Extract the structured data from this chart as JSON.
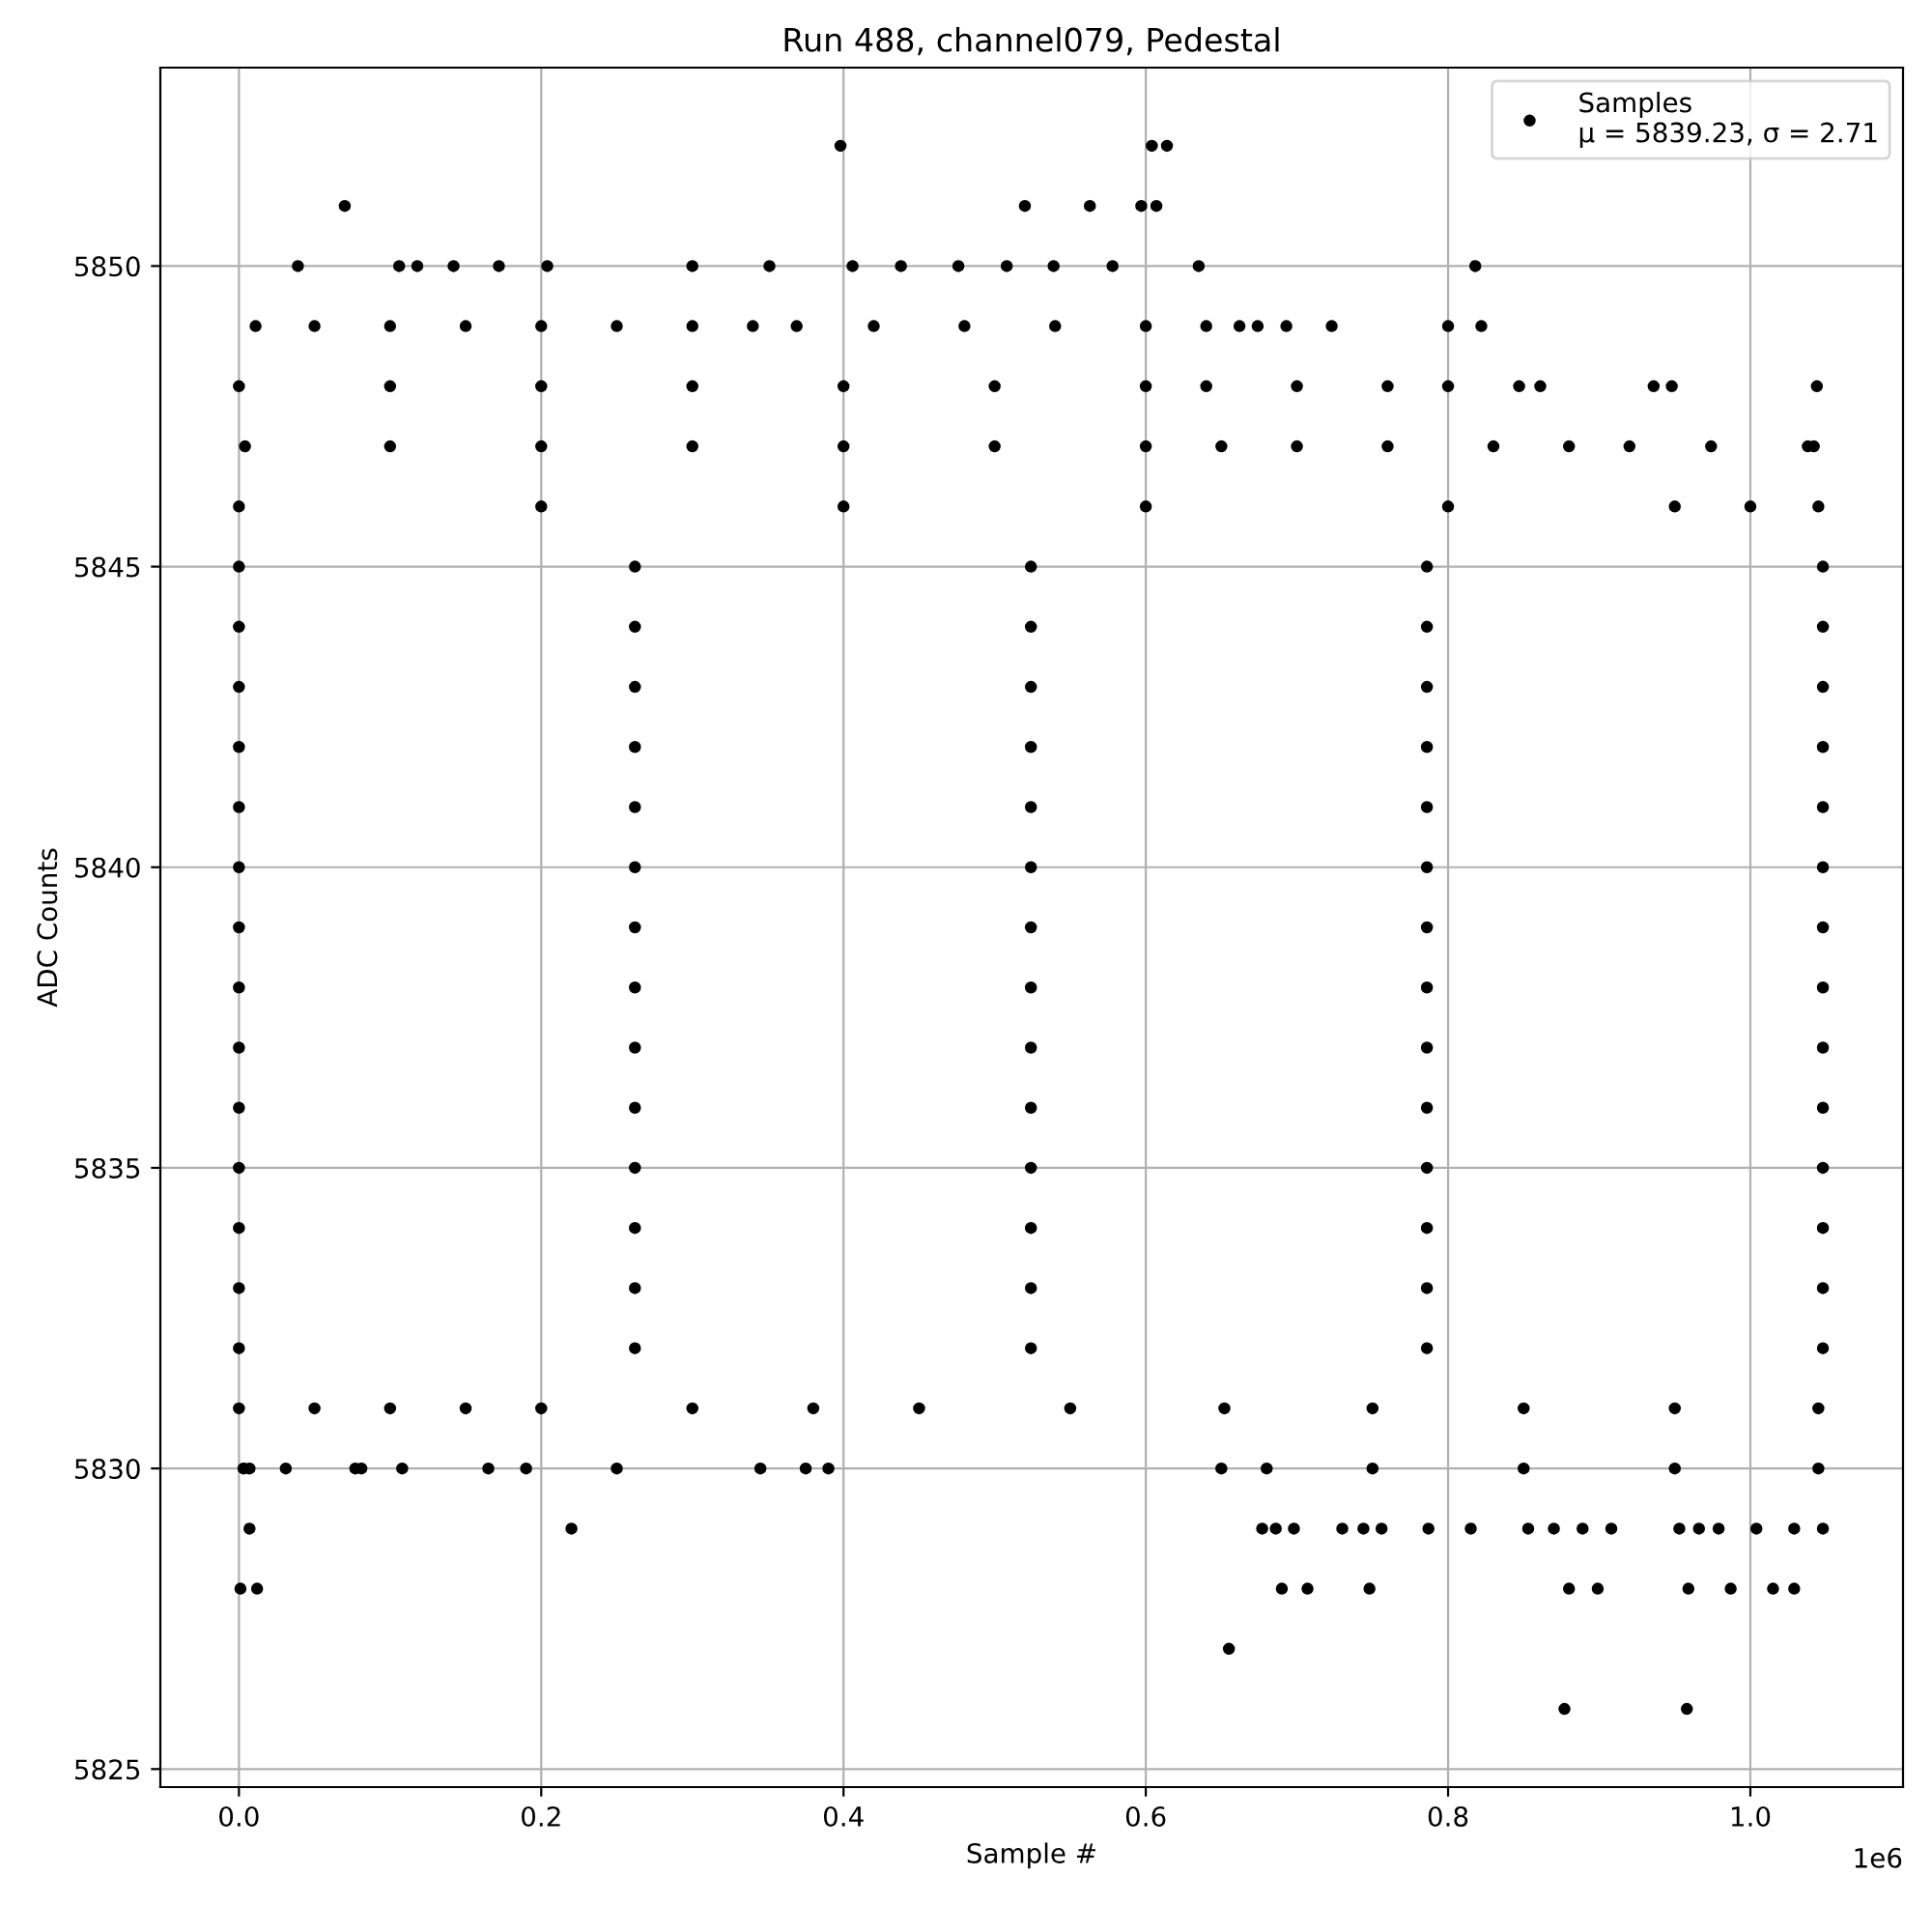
{
  "chart_data": {
    "type": "scatter",
    "title": "Run 488, channel079, Pedestal",
    "xlabel": "Sample #",
    "ylabel": "ADC Counts",
    "xlim": [
      -0.052,
      1.101
    ],
    "ylim": [
      5824.7,
      5853.3
    ],
    "xticks": [
      {
        "value": 0,
        "label": "0.0"
      },
      0.2,
      0.4,
      0.6,
      0.8,
      {
        "value": 1,
        "label": "1.0"
      }
    ],
    "yticks": [
      5825,
      5830,
      5835,
      5840,
      5845,
      5850
    ],
    "annotations": [
      "1e6"
    ],
    "grid": true,
    "legend": "top right",
    "marker": "circle",
    "series": [
      {
        "name": "Samples\nμ = 5839.23, σ = 2.71",
        "color": "#000000",
        "x": [
          0,
          0.262,
          0.524,
          0.786,
          1.048
        ],
        "values": [
          5840,
          5840,
          5840,
          5840,
          5840
        ]
      },
      {
        "color": "#000000",
        "x": [
          0.398,
          0.604,
          0.614
        ],
        "values": [
          5852,
          5852,
          5852
        ]
      },
      {
        "color": "#000000",
        "x": [
          0.07,
          0.52,
          0.563,
          0.597,
          0.607
        ],
        "values": [
          5851,
          5851,
          5851,
          5851,
          5851
        ]
      },
      {
        "color": "#000000",
        "x": [
          0.039,
          0.106,
          0.118,
          0.142,
          0.172,
          0.204,
          0.3,
          0.351,
          0.406,
          0.438,
          0.476,
          0.508,
          0.539,
          0.578,
          0.635,
          0.818
        ],
        "values": [
          5850,
          5850,
          5850,
          5850,
          5850,
          5850,
          5850,
          5850,
          5850,
          5850,
          5850,
          5850,
          5850,
          5850,
          5850,
          5850
        ]
      },
      {
        "color": "#000000",
        "x": [
          0.011,
          0.05,
          0.1,
          0.15,
          0.2,
          0.25,
          0.3,
          0.34,
          0.369,
          0.42,
          0.48,
          0.54,
          0.6,
          0.64,
          0.662,
          0.674,
          0.693,
          0.723,
          0.8,
          0.822
        ],
        "values": [
          5849,
          5849,
          5849,
          5849,
          5849,
          5849,
          5849,
          5849,
          5849,
          5849,
          5849,
          5849,
          5849,
          5849,
          5849,
          5849,
          5849,
          5849,
          5849,
          5849
        ]
      },
      {
        "color": "#000000",
        "x": [
          0,
          0.1,
          0.2,
          0.3,
          0.4,
          0.5,
          0.6,
          0.64,
          0.7,
          0.76,
          0.8,
          0.847,
          0.861,
          0.936,
          0.948,
          1.044
        ],
        "values": [
          5848,
          5848,
          5848,
          5848,
          5848,
          5848,
          5848,
          5848,
          5848,
          5848,
          5848,
          5848,
          5848,
          5848,
          5848,
          5848
        ]
      },
      {
        "color": "#000000",
        "x": [
          0.004,
          0.1,
          0.2,
          0.3,
          0.4,
          0.5,
          0.6,
          0.65,
          0.7,
          0.76,
          0.83,
          0.88,
          0.92,
          0.974,
          1.038,
          1.042
        ],
        "values": [
          5847,
          5847,
          5847,
          5847,
          5847,
          5847,
          5847,
          5847,
          5847,
          5847,
          5847,
          5847,
          5847,
          5847,
          5847,
          5847
        ]
      },
      {
        "color": "#000000",
        "x": [
          0,
          0.2,
          0.4,
          0.6,
          0.8,
          0.95,
          1.0,
          1.045
        ],
        "values": [
          5846,
          5846,
          5846,
          5846,
          5846,
          5846,
          5846,
          5846
        ]
      },
      {
        "color": "#000000",
        "x": [
          0,
          0.262,
          0.524,
          0.786,
          1.048
        ],
        "values": [
          5845,
          5845,
          5845,
          5845,
          5845
        ]
      },
      {
        "color": "#000000",
        "x": [
          0,
          0.262,
          0.524,
          0.786,
          1.048
        ],
        "values": [
          5844,
          5844,
          5844,
          5844,
          5844
        ]
      },
      {
        "color": "#000000",
        "x": [
          0,
          0.262,
          0.524,
          0.786,
          1.048
        ],
        "values": [
          5843,
          5843,
          5843,
          5843,
          5843
        ]
      },
      {
        "color": "#000000",
        "x": [
          0,
          0.262,
          0.524,
          0.786,
          1.048
        ],
        "values": [
          5842,
          5842,
          5842,
          5842,
          5842
        ]
      },
      {
        "color": "#000000",
        "x": [
          0,
          0.262,
          0.524,
          0.786,
          1.048
        ],
        "values": [
          5841,
          5841,
          5841,
          5841,
          5841
        ]
      },
      {
        "color": "#000000",
        "x": [
          0,
          0.262,
          0.524,
          0.786,
          1.048
        ],
        "values": [
          5839,
          5839,
          5839,
          5839,
          5839
        ]
      },
      {
        "color": "#000000",
        "x": [
          0,
          0.262,
          0.524,
          0.786,
          1.048
        ],
        "values": [
          5838,
          5838,
          5838,
          5838,
          5838
        ]
      },
      {
        "color": "#000000",
        "x": [
          0,
          0.262,
          0.524,
          0.786,
          1.048
        ],
        "values": [
          5837,
          5837,
          5837,
          5837,
          5837
        ]
      },
      {
        "color": "#000000",
        "x": [
          0,
          0.262,
          0.524,
          0.786,
          1.048
        ],
        "values": [
          5836,
          5836,
          5836,
          5836,
          5836
        ]
      },
      {
        "color": "#000000",
        "x": [
          0,
          0.262,
          0.524,
          0.786,
          1.048
        ],
        "values": [
          5835,
          5835,
          5835,
          5835,
          5835
        ]
      },
      {
        "color": "#000000",
        "x": [
          0,
          0.262,
          0.524,
          0.786,
          1.048
        ],
        "values": [
          5834,
          5834,
          5834,
          5834,
          5834
        ]
      },
      {
        "color": "#000000",
        "x": [
          0,
          0.262,
          0.524,
          0.786,
          1.048
        ],
        "values": [
          5833,
          5833,
          5833,
          5833,
          5833
        ]
      },
      {
        "color": "#000000",
        "x": [
          0,
          0.262,
          0.524,
          0.786,
          1.048
        ],
        "values": [
          5832,
          5832,
          5832,
          5832,
          5832
        ]
      },
      {
        "color": "#000000",
        "x": [
          0,
          0.05,
          0.1,
          0.15,
          0.2,
          0.3,
          0.38,
          0.45,
          0.55,
          0.652,
          0.75,
          0.85,
          0.95,
          1.045
        ],
        "values": [
          5831,
          5831,
          5831,
          5831,
          5831,
          5831,
          5831,
          5831,
          5831,
          5831,
          5831,
          5831,
          5831,
          5831
        ]
      },
      {
        "color": "#000000",
        "x": [
          0.003,
          0.007,
          0.031,
          0.077,
          0.081,
          0.108,
          0.165,
          0.19,
          0.25,
          0.345,
          0.375,
          0.39,
          0.65,
          0.68,
          0.75,
          0.85,
          0.95,
          1.045
        ],
        "values": [
          5830,
          5830,
          5830,
          5830,
          5830,
          5830,
          5830,
          5830,
          5830,
          5830,
          5830,
          5830,
          5830,
          5830,
          5830,
          5830,
          5830,
          5830
        ]
      },
      {
        "color": "#000000",
        "x": [
          0.007,
          0.22,
          0.677,
          0.686,
          0.698,
          0.73,
          0.744,
          0.756,
          0.787,
          0.815,
          0.853,
          0.87,
          0.889,
          0.908,
          0.953,
          0.966,
          0.979,
          1.004,
          1.029,
          1.048
        ],
        "values": [
          5829,
          5829,
          5829,
          5829,
          5829,
          5829,
          5829,
          5829,
          5829,
          5829,
          5829,
          5829,
          5829,
          5829,
          5829,
          5829,
          5829,
          5829,
          5829,
          5829
        ]
      },
      {
        "color": "#000000",
        "x": [
          0.001,
          0.012,
          0.69,
          0.707,
          0.748,
          0.88,
          0.899,
          0.959,
          0.987,
          1.015,
          1.029
        ],
        "values": [
          5828,
          5828,
          5828,
          5828,
          5828,
          5828,
          5828,
          5828,
          5828,
          5828,
          5828
        ]
      },
      {
        "color": "#000000",
        "x": [
          0.655
        ],
        "values": [
          5827
        ]
      },
      {
        "color": "#000000",
        "x": [
          0.877,
          0.958
        ],
        "values": [
          5826,
          5826
        ]
      }
    ]
  }
}
